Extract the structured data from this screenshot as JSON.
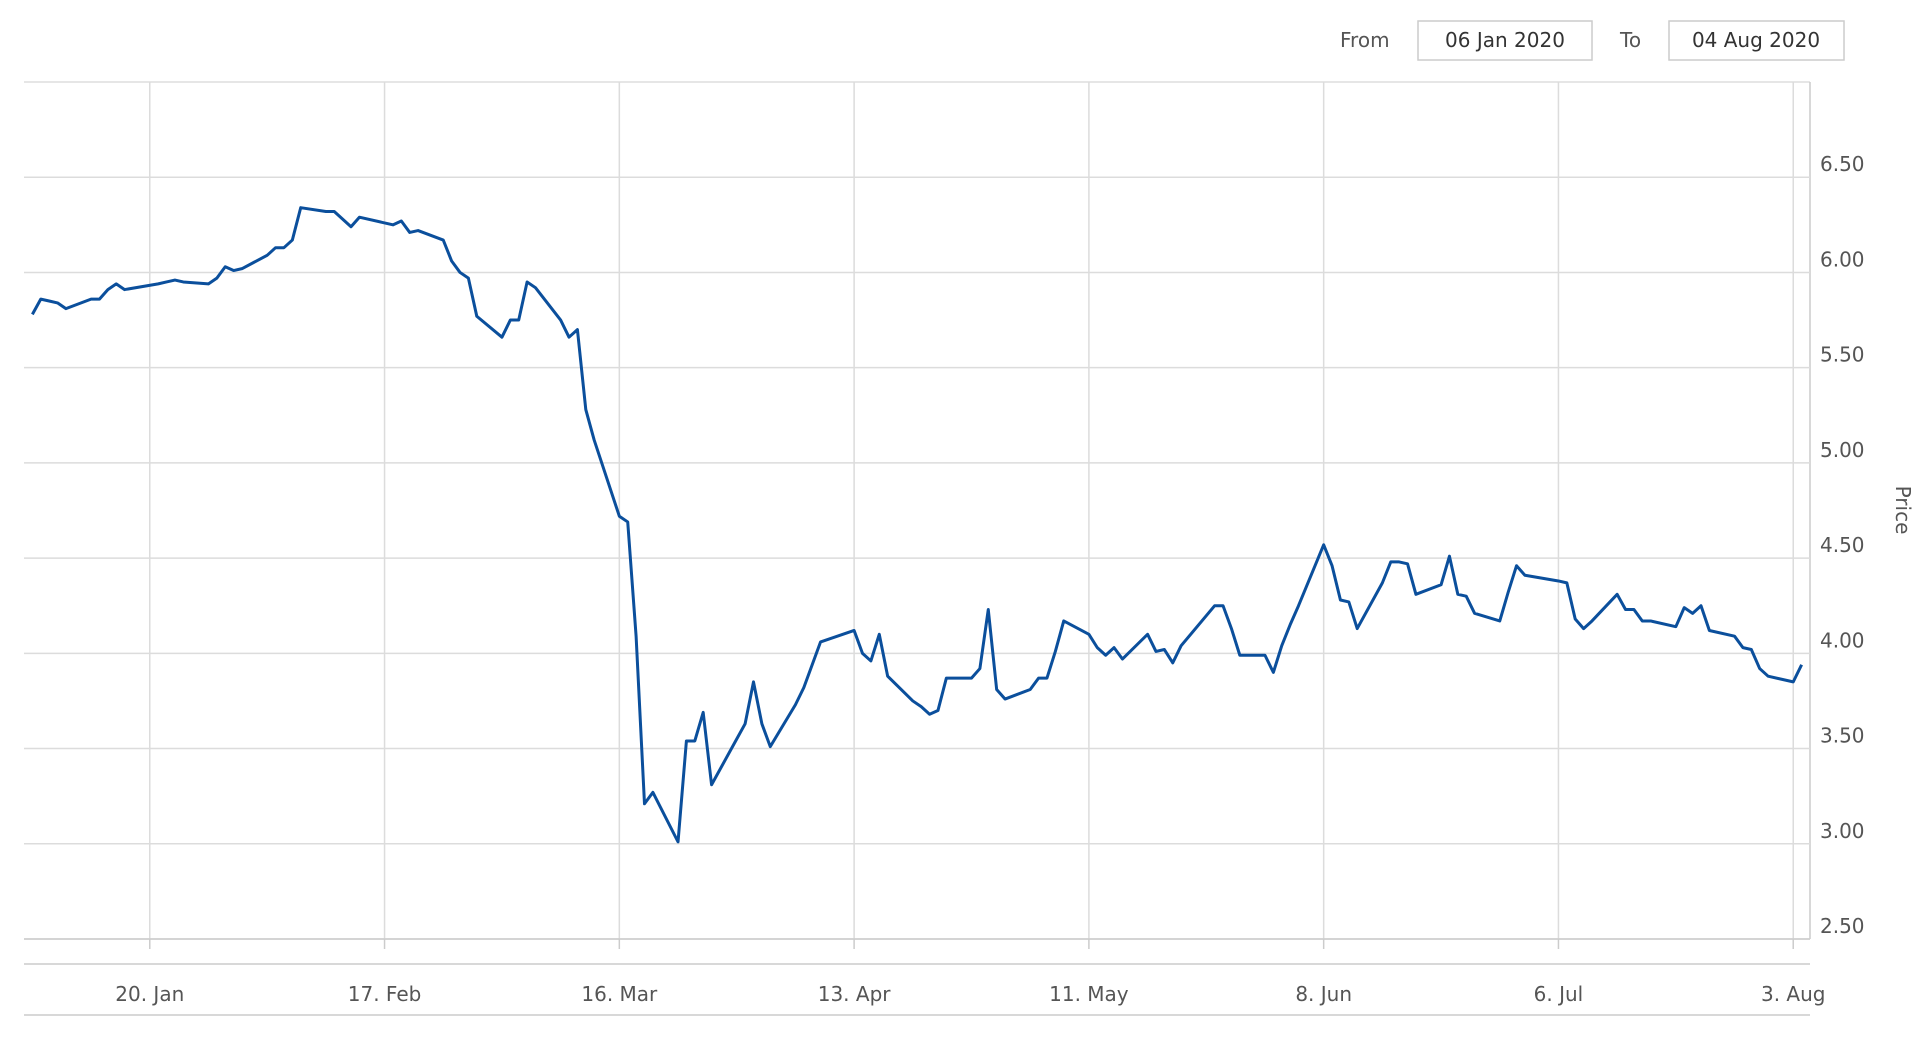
{
  "range_selector": {
    "from_label": "From",
    "from_value": "06 Jan 2020",
    "to_label": "To",
    "to_value": "04 Aug 2020"
  },
  "chart_data": {
    "type": "line",
    "y_label": "Price",
    "color": "#0b4f9c",
    "grid": true,
    "xlim": [
      "2020-01-05",
      "2020-08-05"
    ],
    "xticks": [
      {
        "value": "2020-01-20",
        "label": "20. Jan"
      },
      {
        "value": "2020-02-17",
        "label": "17. Feb"
      },
      {
        "value": "2020-03-16",
        "label": "16. Mar"
      },
      {
        "value": "2020-04-13",
        "label": "13. Apr"
      },
      {
        "value": "2020-05-11",
        "label": "11. May"
      },
      {
        "value": "2020-06-08",
        "label": "8. Jun"
      },
      {
        "value": "2020-07-06",
        "label": "6. Jul"
      },
      {
        "value": "2020-08-03",
        "label": "3. Aug"
      }
    ],
    "ylim": [
      2.5,
      7
    ],
    "yticks": [
      {
        "value": 2.5,
        "label": "2.50"
      },
      {
        "value": 3,
        "label": "3.00"
      },
      {
        "value": 3.5,
        "label": "3.50"
      },
      {
        "value": 4,
        "label": "4.00"
      },
      {
        "value": 4.5,
        "label": "4.50"
      },
      {
        "value": 5,
        "label": "5.00"
      },
      {
        "value": 5.5,
        "label": "5.50"
      },
      {
        "value": 6,
        "label": "6.00"
      },
      {
        "value": 6.5,
        "label": "6.50"
      }
    ],
    "x": [
      "2020-01-06",
      "2020-01-07",
      "2020-01-08",
      "2020-01-09",
      "2020-01-10",
      "2020-01-13",
      "2020-01-14",
      "2020-01-15",
      "2020-01-16",
      "2020-01-17",
      "2020-01-21",
      "2020-01-22",
      "2020-01-23",
      "2020-01-24",
      "2020-01-27",
      "2020-01-28",
      "2020-01-29",
      "2020-01-30",
      "2020-01-31",
      "2020-02-03",
      "2020-02-04",
      "2020-02-05",
      "2020-02-06",
      "2020-02-07",
      "2020-02-10",
      "2020-02-11",
      "2020-02-12",
      "2020-02-13",
      "2020-02-14",
      "2020-02-18",
      "2020-02-19",
      "2020-02-20",
      "2020-02-21",
      "2020-02-24",
      "2020-02-25",
      "2020-02-26",
      "2020-02-27",
      "2020-02-28",
      "2020-03-02",
      "2020-03-03",
      "2020-03-04",
      "2020-03-05",
      "2020-03-06",
      "2020-03-09",
      "2020-03-10",
      "2020-03-11",
      "2020-03-12",
      "2020-03-13",
      "2020-03-16",
      "2020-03-17",
      "2020-03-18",
      "2020-03-19",
      "2020-03-20",
      "2020-03-23",
      "2020-03-24",
      "2020-03-25",
      "2020-03-26",
      "2020-03-27",
      "2020-03-30",
      "2020-03-31",
      "2020-04-01",
      "2020-04-02",
      "2020-04-03",
      "2020-04-06",
      "2020-04-07",
      "2020-04-08",
      "2020-04-09",
      "2020-04-13",
      "2020-04-14",
      "2020-04-15",
      "2020-04-16",
      "2020-04-17",
      "2020-04-20",
      "2020-04-21",
      "2020-04-22",
      "2020-04-23",
      "2020-04-24",
      "2020-04-27",
      "2020-04-28",
      "2020-04-29",
      "2020-04-30",
      "2020-05-01",
      "2020-05-04",
      "2020-05-05",
      "2020-05-06",
      "2020-05-07",
      "2020-05-08",
      "2020-05-11",
      "2020-05-12",
      "2020-05-13",
      "2020-05-14",
      "2020-05-15",
      "2020-05-18",
      "2020-05-19",
      "2020-05-20",
      "2020-05-21",
      "2020-05-22",
      "2020-05-26",
      "2020-05-27",
      "2020-05-28",
      "2020-05-29",
      "2020-06-01",
      "2020-06-02",
      "2020-06-03",
      "2020-06-04",
      "2020-06-05",
      "2020-06-08",
      "2020-06-09",
      "2020-06-10",
      "2020-06-11",
      "2020-06-12",
      "2020-06-15",
      "2020-06-16",
      "2020-06-17",
      "2020-06-18",
      "2020-06-19",
      "2020-06-22",
      "2020-06-23",
      "2020-06-24",
      "2020-06-25",
      "2020-06-26",
      "2020-06-29",
      "2020-06-30",
      "2020-07-01",
      "2020-07-02",
      "2020-07-06",
      "2020-07-07",
      "2020-07-08",
      "2020-07-09",
      "2020-07-10",
      "2020-07-13",
      "2020-07-14",
      "2020-07-15",
      "2020-07-16",
      "2020-07-17",
      "2020-07-20",
      "2020-07-21",
      "2020-07-22",
      "2020-07-23",
      "2020-07-24",
      "2020-07-27",
      "2020-07-28",
      "2020-07-29",
      "2020-07-30",
      "2020-07-31",
      "2020-08-03",
      "2020-08-04"
    ],
    "values": [
      5.78,
      5.86,
      5.85,
      5.84,
      5.81,
      5.86,
      5.86,
      5.91,
      5.94,
      5.91,
      5.94,
      5.95,
      5.96,
      5.95,
      5.94,
      5.97,
      6.03,
      6.01,
      6.02,
      6.09,
      6.13,
      6.13,
      6.17,
      6.34,
      6.32,
      6.32,
      6.28,
      6.24,
      6.29,
      6.25,
      6.27,
      6.21,
      6.22,
      6.17,
      6.06,
      6.0,
      5.97,
      5.77,
      5.66,
      5.75,
      5.75,
      5.95,
      5.92,
      5.75,
      5.66,
      5.7,
      5.28,
      5.12,
      4.72,
      4.69,
      4.09,
      3.21,
      3.27,
      3.01,
      3.54,
      3.54,
      3.69,
      3.31,
      3.55,
      3.63,
      3.85,
      3.63,
      3.51,
      3.73,
      3.82,
      3.94,
      4.06,
      4.12,
      4.0,
      3.96,
      4.1,
      3.88,
      3.75,
      3.72,
      3.68,
      3.7,
      3.87,
      3.87,
      3.92,
      4.23,
      3.81,
      3.76,
      3.81,
      3.87,
      3.87,
      4.01,
      4.17,
      4.1,
      4.03,
      3.99,
      4.03,
      3.97,
      4.1,
      4.01,
      4.02,
      3.95,
      4.04,
      4.25,
      4.25,
      4.13,
      3.99,
      3.99,
      3.9,
      4.04,
      4.15,
      4.25,
      4.57,
      4.46,
      4.28,
      4.27,
      4.13,
      4.37,
      4.48,
      4.48,
      4.47,
      4.31,
      4.36,
      4.51,
      4.31,
      4.3,
      4.21,
      4.17,
      4.32,
      4.46,
      4.41,
      4.38,
      4.37,
      4.18,
      4.13,
      4.17,
      4.31,
      4.23,
      4.23,
      4.17,
      4.17,
      4.14,
      4.24,
      4.21,
      4.25,
      4.12,
      4.09,
      4.03,
      4.02,
      3.92,
      3.88,
      3.85,
      3.94
    ]
  }
}
